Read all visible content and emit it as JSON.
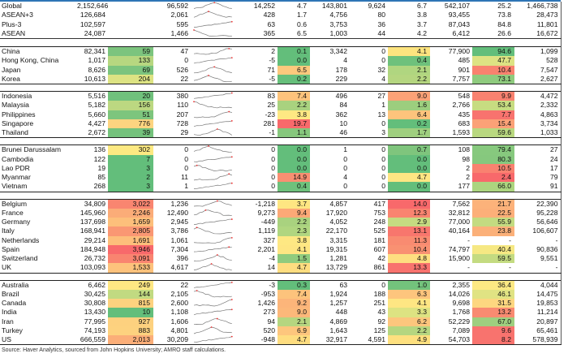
{
  "summary_rows": [
    {
      "name": "Global",
      "c1": "2,152,646",
      "c2": "",
      "c3": "96,592",
      "c4": "14,252",
      "c5": "4.7",
      "c6": "143,801",
      "c7": "9,624",
      "c8": "6.7",
      "c9": "542,107",
      "c10": "25.2",
      "c11": "1,466,738"
    },
    {
      "name": "ASEAN+3",
      "c1": "126,684",
      "c2": "",
      "c3": "2,061",
      "c4": "428",
      "c5": "1.7",
      "c6": "4,756",
      "c7": "80",
      "c8": "3.8",
      "c9": "93,455",
      "c10": "73.8",
      "c11": "28,473"
    },
    {
      "name": "Plus-3",
      "c1": "102,597",
      "c2": "",
      "c3": "595",
      "c4": "63",
      "c5": "0.6",
      "c6": "3,753",
      "c7": "36",
      "c8": "3.7",
      "c9": "87,043",
      "c10": "84.8",
      "c11": "11,801"
    },
    {
      "name": "ASEAN",
      "c1": "24,087",
      "c2": "",
      "c3": "1,466",
      "c4": "365",
      "c5": "6.5",
      "c6": "1,003",
      "c7": "44",
      "c8": "4.2",
      "c9": "6,412",
      "c10": "26.6",
      "c11": "16,672"
    }
  ],
  "groups": [
    [
      {
        "name": "China",
        "c1": "82,341",
        "c2": "59",
        "c3": "47",
        "c4": "2",
        "c5": "0.1",
        "c6": "3,342",
        "c7": "0",
        "c8": "4.1",
        "c9": "77,900",
        "c10": "94.6",
        "c11": "1,099"
      },
      {
        "name": "Hong Kong, China",
        "c1": "1,017",
        "c2": "133",
        "c3": "0",
        "c4": "-5",
        "c5": "0.0",
        "c6": "4",
        "c7": "0",
        "c8": "0.4",
        "c9": "485",
        "c10": "47.7",
        "c11": "528"
      },
      {
        "name": "Japan",
        "c1": "8,626",
        "c2": "69",
        "c3": "526",
        "c4": "71",
        "c5": "6.5",
        "c6": "178",
        "c7": "32",
        "c8": "2.1",
        "c9": "901",
        "c10": "10.4",
        "c11": "7,547"
      },
      {
        "name": "Korea",
        "c1": "10,613",
        "c2": "204",
        "c3": "22",
        "c4": "-5",
        "c5": "0.2",
        "c6": "229",
        "c7": "4",
        "c8": "2.2",
        "c9": "7,757",
        "c10": "73.1",
        "c11": "2,627"
      }
    ],
    [
      {
        "name": "Indonesia",
        "c1": "5,516",
        "c2": "20",
        "c3": "380",
        "c4": "83",
        "c5": "7.4",
        "c6": "496",
        "c7": "27",
        "c8": "9.0",
        "c9": "548",
        "c10": "9.9",
        "c11": "4,472"
      },
      {
        "name": "Malaysia",
        "c1": "5,182",
        "c2": "156",
        "c3": "110",
        "c4": "25",
        "c5": "2.2",
        "c6": "84",
        "c7": "1",
        "c8": "1.6",
        "c9": "2,766",
        "c10": "53.4",
        "c11": "2,332"
      },
      {
        "name": "Philippines",
        "c1": "5,660",
        "c2": "51",
        "c3": "207",
        "c4": "-23",
        "c5": "3.8",
        "c6": "362",
        "c7": "13",
        "c8": "6.4",
        "c9": "435",
        "c10": "7.7",
        "c11": "4,863"
      },
      {
        "name": "Singapore",
        "c1": "4,427",
        "c2": "776",
        "c3": "728",
        "c4": "281",
        "c5": "19.7",
        "c6": "10",
        "c7": "0",
        "c8": "0.2",
        "c9": "683",
        "c10": "15.4",
        "c11": "3,734"
      },
      {
        "name": "Thailand",
        "c1": "2,672",
        "c2": "39",
        "c3": "29",
        "c4": "-1",
        "c5": "1.1",
        "c6": "46",
        "c7": "3",
        "c8": "1.7",
        "c9": "1,593",
        "c10": "59.6",
        "c11": "1,033"
      }
    ],
    [
      {
        "name": "Brunei Darussalam",
        "c1": "136",
        "c2": "302",
        "c3": "0",
        "c4": "0",
        "c5": "0.0",
        "c6": "1",
        "c7": "0",
        "c8": "0.7",
        "c9": "108",
        "c10": "79.4",
        "c11": "27"
      },
      {
        "name": "Cambodia",
        "c1": "122",
        "c2": "7",
        "c3": "0",
        "c4": "0",
        "c5": "0.0",
        "c6": "0",
        "c7": "0",
        "c8": "0.0",
        "c9": "98",
        "c10": "80.3",
        "c11": "24"
      },
      {
        "name": "Lao PDR",
        "c1": "19",
        "c2": "3",
        "c3": "0",
        "c4": "0",
        "c5": "0.0",
        "c6": "0",
        "c7": "0",
        "c8": "0.0",
        "c9": "2",
        "c10": "10.5",
        "c11": "17"
      },
      {
        "name": "Myanmar",
        "c1": "85",
        "c2": "2",
        "c3": "11",
        "c4": "0",
        "c5": "14.9",
        "c6": "4",
        "c7": "0",
        "c8": "4.7",
        "c9": "2",
        "c10": "2.4",
        "c11": "79"
      },
      {
        "name": "Vietnam",
        "c1": "268",
        "c2": "3",
        "c3": "1",
        "c4": "0",
        "c5": "0.4",
        "c6": "0",
        "c7": "0",
        "c8": "0.0",
        "c9": "177",
        "c10": "66.0",
        "c11": "91"
      }
    ],
    [
      {
        "name": "Belgium",
        "c1": "34,809",
        "c2": "3,022",
        "c3": "1,236",
        "c4": "-1,218",
        "c5": "3.7",
        "c6": "4,857",
        "c7": "417",
        "c8": "14.0",
        "c9": "7,562",
        "c10": "21.7",
        "c11": "22,390"
      },
      {
        "name": "France",
        "c1": "145,960",
        "c2": "2,246",
        "c3": "12,490",
        "c4": "9,273",
        "c5": "9.4",
        "c6": "17,920",
        "c7": "753",
        "c8": "12.3",
        "c9": "32,812",
        "c10": "22.5",
        "c11": "95,228"
      },
      {
        "name": "Germany",
        "c1": "137,698",
        "c2": "1,659",
        "c3": "2,945",
        "c4": "-449",
        "c5": "2.2",
        "c6": "4,052",
        "c7": "248",
        "c8": "2.9",
        "c9": "77,000",
        "c10": "55.9",
        "c11": "56,646"
      },
      {
        "name": "Italy",
        "c1": "168,941",
        "c2": "2,805",
        "c3": "3,786",
        "c4": "1,119",
        "c5": "2.3",
        "c6": "22,170",
        "c7": "525",
        "c8": "13.1",
        "c9": "40,164",
        "c10": "23.8",
        "c11": "106,607"
      },
      {
        "name": "Netherlands",
        "c1": "29,214",
        "c2": "1,691",
        "c3": "1,061",
        "c4": "327",
        "c5": "3.8",
        "c6": "3,315",
        "c7": "181",
        "c8": "11.3",
        "c9": "-",
        "c10": "-",
        "c11": "-"
      },
      {
        "name": "Spain",
        "c1": "184,948",
        "c2": "3,946",
        "c3": "7,304",
        "c4": "2,201",
        "c5": "4.1",
        "c6": "19,315",
        "c7": "607",
        "c8": "10.4",
        "c9": "74,797",
        "c10": "40.4",
        "c11": "90,836"
      },
      {
        "name": "Switzerland",
        "c1": "26,732",
        "c2": "3,091",
        "c3": "396",
        "c4": "-4",
        "c5": "1.5",
        "c6": "1,281",
        "c7": "42",
        "c8": "4.8",
        "c9": "15,900",
        "c10": "59.5",
        "c11": "9,551"
      },
      {
        "name": "UK",
        "c1": "103,093",
        "c2": "1,533",
        "c3": "4,617",
        "c4": "14",
        "c5": "4.7",
        "c6": "13,729",
        "c7": "861",
        "c8": "13.3",
        "c9": "-",
        "c10": "-",
        "c11": "-"
      }
    ],
    [
      {
        "name": "Australia",
        "c1": "6,462",
        "c2": "249",
        "c3": "22",
        "c4": "-3",
        "c5": "0.3",
        "c6": "63",
        "c7": "0",
        "c8": "1.0",
        "c9": "2,355",
        "c10": "36.4",
        "c11": "4,044"
      },
      {
        "name": "Brazil",
        "c1": "30,425",
        "c2": "144",
        "c3": "2,105",
        "c4": "-953",
        "c5": "7.4",
        "c6": "1,924",
        "c7": "188",
        "c8": "6.3",
        "c9": "14,026",
        "c10": "46.1",
        "c11": "14,475"
      },
      {
        "name": "Canada",
        "c1": "30,808",
        "c2": "815",
        "c3": "2,600",
        "c4": "1,426",
        "c5": "9.2",
        "c6": "1,257",
        "c7": "251",
        "c8": "4.1",
        "c9": "9,698",
        "c10": "31.5",
        "c11": "19,853"
      },
      {
        "name": "India",
        "c1": "13,430",
        "c2": "10",
        "c3": "1,108",
        "c4": "273",
        "c5": "9.0",
        "c6": "448",
        "c7": "43",
        "c8": "3.3",
        "c9": "1,768",
        "c10": "13.2",
        "c11": "11,214"
      },
      {
        "name": "Iran",
        "c1": "77,995",
        "c2": "927",
        "c3": "1,606",
        "c4": "94",
        "c5": "2.1",
        "c6": "4,869",
        "c7": "92",
        "c8": "6.2",
        "c9": "52,229",
        "c10": "67.0",
        "c11": "20,897"
      },
      {
        "name": "Turkey",
        "c1": "74,193",
        "c2": "883",
        "c3": "4,801",
        "c4": "520",
        "c5": "6.9",
        "c6": "1,643",
        "c7": "125",
        "c8": "2.2",
        "c9": "7,089",
        "c10": "9.6",
        "c11": "65,461"
      },
      {
        "name": "US",
        "c1": "666,559",
        "c2": "2,013",
        "c3": "30,209",
        "c4": "-948",
        "c5": "4.7",
        "c6": "32,917",
        "c7": "4,591",
        "c8": "4.9",
        "c9": "54,703",
        "c10": "8.2",
        "c11": "578,939"
      }
    ]
  ],
  "group_colors": [
    [
      {
        "c2": "#7cc47e",
        "c5": "#63be7b",
        "c8": "#fde47f",
        "c10": "#63be7b"
      },
      {
        "c2": "#b7d780",
        "c5": "#63be7b",
        "c8": "#6ec17c",
        "c10": "#dde383"
      },
      {
        "c2": "#7cc47e",
        "c5": "#fdc97d",
        "c8": "#b0d680",
        "c10": "#f9826f"
      },
      {
        "c2": "#dde383",
        "c5": "#66bf7b",
        "c8": "#b5d680",
        "c10": "#8fcb7e"
      }
    ],
    [
      {
        "c2": "#70c17c",
        "c5": "#fdc37c",
        "c8": "#fba277",
        "c10": "#f98270"
      },
      {
        "c2": "#bcd881",
        "c5": "#a9d27f",
        "c8": "#9cce7e",
        "c10": "#c7dc81"
      },
      {
        "c2": "#7dc57d",
        "c5": "#fee883",
        "c8": "#fdc47c",
        "c10": "#f8736e"
      },
      {
        "c2": "#fdd480",
        "c5": "#f8696b",
        "c8": "#63be7b",
        "c10": "#fba177"
      },
      {
        "c2": "#74c27c",
        "c5": "#86c77d",
        "c8": "#9fcf7f",
        "c10": "#b9d880"
      }
    ],
    [
      {
        "c2": "#fde982",
        "c5": "#63be7b",
        "c8": "#7fc57d",
        "c10": "#87c97e"
      },
      {
        "c2": "#63be7b",
        "c5": "#63be7b",
        "c8": "#63be7b",
        "c10": "#86c87e"
      },
      {
        "c2": "#63be7b",
        "c5": "#63be7b",
        "c8": "#63be7b",
        "c10": "#f98270"
      },
      {
        "c2": "#63be7b",
        "c5": "#f98f72",
        "c8": "#fee683",
        "c10": "#f8696b"
      },
      {
        "c2": "#63be7b",
        "c5": "#6ec17c",
        "c8": "#63be7b",
        "c10": "#acd57f"
      }
    ],
    [
      {
        "c2": "#f98570",
        "c5": "#fee682",
        "c8": "#f8696b",
        "c10": "#fcb27a"
      },
      {
        "c2": "#fbac78",
        "c5": "#fca977",
        "c8": "#f98470",
        "c10": "#fcaf79"
      },
      {
        "c2": "#fdbf7b",
        "c5": "#a9d27f",
        "c8": "#c5db81",
        "c10": "#c3db81"
      },
      {
        "c2": "#fa9773",
        "c5": "#b0d680",
        "c8": "#f8766d",
        "c10": "#fbb079"
      },
      {
        "c2": "#fdbe7b",
        "c5": "#fee883",
        "c8": "#f98b71",
        "c10": null
      },
      {
        "c2": "#f8696b",
        "c5": "#fee683",
        "c8": "#f99172",
        "c10": "#f6e883"
      },
      {
        "c2": "#f98470",
        "c5": "#8fcb7e",
        "c8": "#fedf80",
        "c10": "#c4db81"
      },
      {
        "c2": "#fdc27c",
        "c5": "#fedd80",
        "c8": "#f8736e",
        "c10": null
      }
    ],
    [
      {
        "c2": "#fee783",
        "c5": "#63be7b",
        "c8": "#73c27c",
        "c10": "#fde983"
      },
      {
        "c2": "#c1da81",
        "c5": "#fdc37c",
        "c8": "#fdc57d",
        "c10": "#e0e383"
      },
      {
        "c2": "#fdd27f",
        "c5": "#fcb57a",
        "c8": "#fee683",
        "c10": "#fdd780"
      },
      {
        "c2": "#63be7b",
        "c5": "#fcb87a",
        "c8": "#dde382",
        "c10": "#f98b71"
      },
      {
        "c2": "#fdd17f",
        "c5": "#b5d680",
        "c8": "#fdc67d",
        "c10": "#9fcf7f"
      },
      {
        "c2": "#fdd27f",
        "c5": "#fdc67d",
        "c8": "#b5d680",
        "c10": "#f8736e"
      },
      {
        "c2": "#fbae78",
        "c5": "#fedd80",
        "c8": "#fee07f",
        "c10": "#f8736e"
      }
    ]
  ],
  "source": "Source: Haver Analytics, sourced from John Hopkins University; AMRO staff calculations.",
  "accent": "#2e75b6"
}
